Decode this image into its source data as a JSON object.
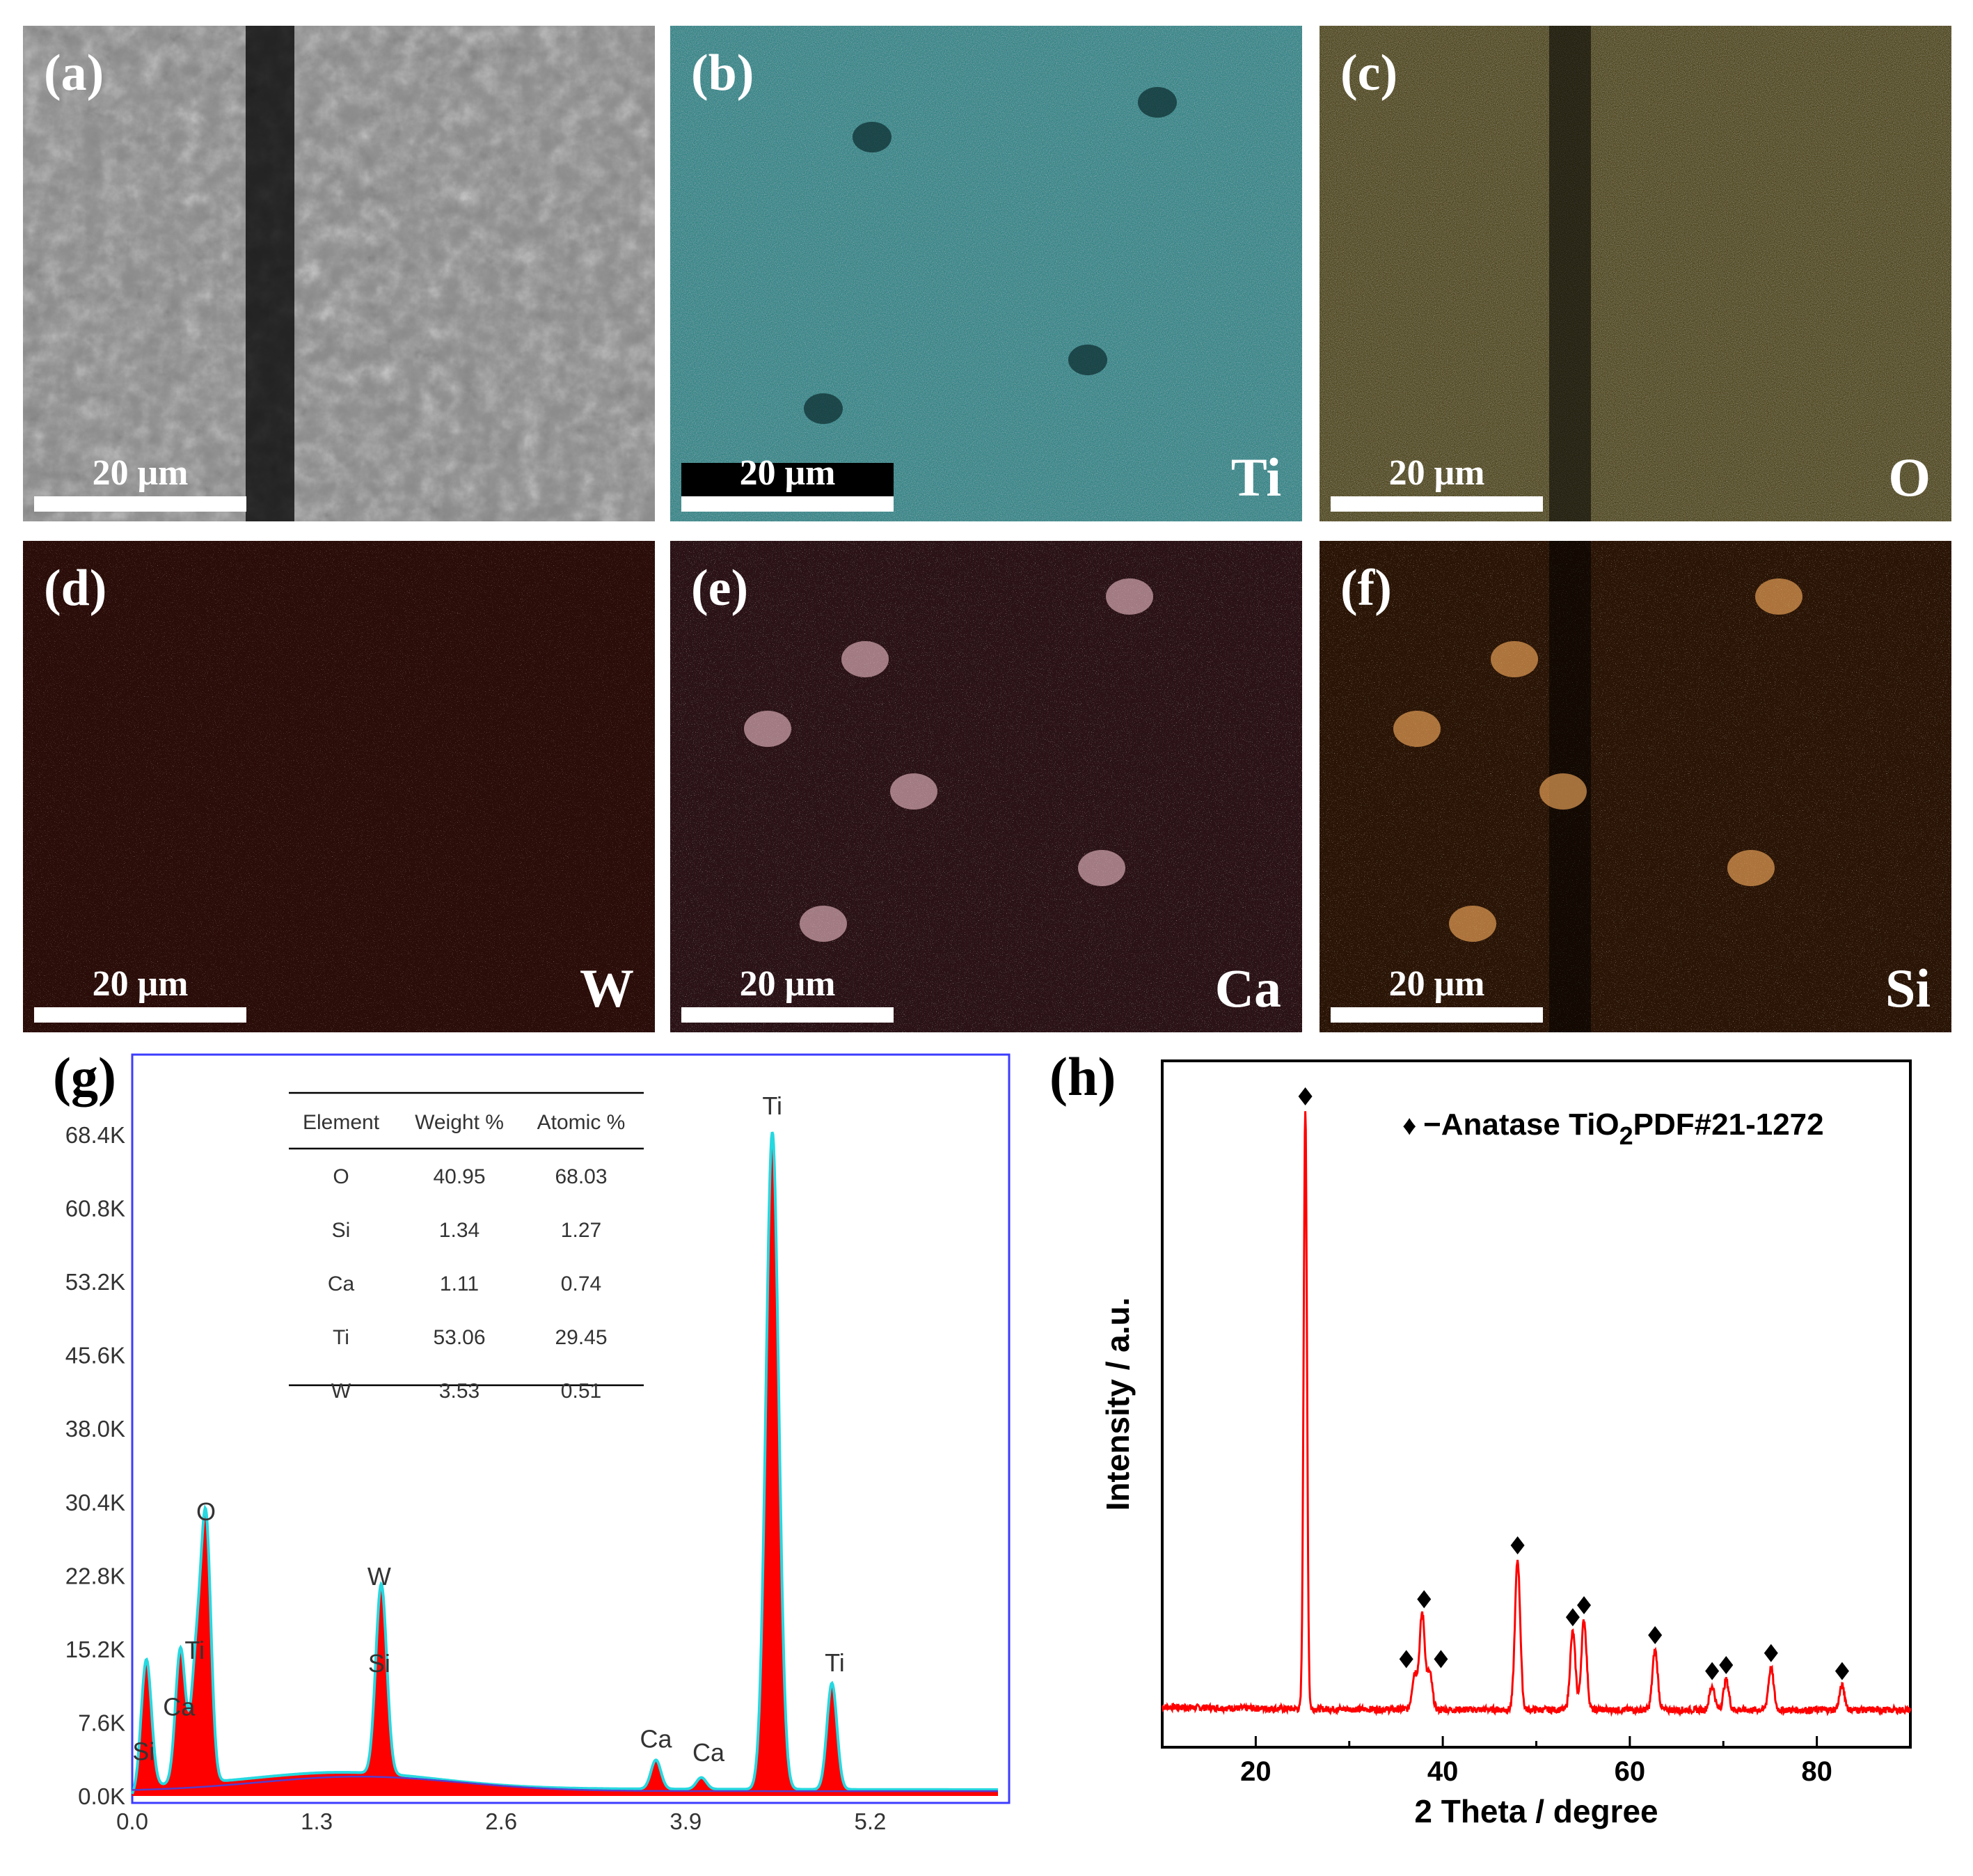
{
  "panels": [
    {
      "label": "(a)",
      "element": "",
      "scale": "20 μm",
      "base": "#8a8a8a",
      "fg": "#e8e8e8"
    },
    {
      "label": "(b)",
      "element": "Ti",
      "scale": "20 μm",
      "base": "#1a7a7e",
      "fg": "#4fd1d4"
    },
    {
      "label": "(c)",
      "element": "O",
      "scale": "20 μm",
      "base": "#3a3000",
      "fg": "#c9b21a"
    },
    {
      "label": "(d)",
      "element": "W",
      "scale": "20 μm",
      "base": "#2a0c08",
      "fg": "#c0311c"
    },
    {
      "label": "(e)",
      "element": "Ca",
      "scale": "20 μm",
      "base": "#2a1216",
      "fg": "#d89aa6"
    },
    {
      "label": "(f)",
      "element": "Si",
      "scale": "20 μm",
      "base": "#2a1405",
      "fg": "#e3963a"
    }
  ],
  "g": {
    "label": "(g)",
    "table": {
      "headers": [
        "Element",
        "Weight %",
        "Atomic %"
      ],
      "rows": [
        [
          "O",
          "40.95",
          "68.03"
        ],
        [
          "Si",
          "1.34",
          "1.27"
        ],
        [
          "Ca",
          "1.11",
          "0.74"
        ],
        [
          "Ti",
          "53.06",
          "29.45"
        ],
        [
          "W",
          "3.53",
          "0.51"
        ]
      ]
    }
  },
  "h": {
    "label": "(h)",
    "legend_marker": "♦",
    "legend_text": "−Anatase TiO",
    "legend_sub": "2",
    "legend_tail": "PDF#21-1272"
  },
  "chart_data": [
    {
      "type": "line",
      "title": "",
      "xlabel": "",
      "ylabel": "",
      "xlim": [
        0,
        6.1
      ],
      "ylim": [
        0,
        68400
      ],
      "x_ticks": [
        "0.0",
        "1.3",
        "2.6",
        "3.9",
        "5.2"
      ],
      "y_ticks": [
        "0.0K",
        "7.6K",
        "15.2K",
        "22.8K",
        "30.4K",
        "38.0K",
        "45.6K",
        "53.2K",
        "60.8K",
        "68.4K"
      ],
      "peaks": [
        {
          "name": "Si",
          "x": 0.1,
          "y": 13000
        },
        {
          "name": "Ca",
          "x": 0.34,
          "y": 14000
        },
        {
          "name": "Ti",
          "x": 0.45,
          "y": 12000
        },
        {
          "name": "O",
          "x": 0.52,
          "y": 26500
        },
        {
          "name": "W",
          "x": 1.77,
          "y": 10500
        },
        {
          "name": "Si",
          "x": 1.74,
          "y": 11000
        },
        {
          "name": "Ca",
          "x": 3.69,
          "y": 3000
        },
        {
          "name": "Ca",
          "x": 4.01,
          "y": 1200
        },
        {
          "name": "Ti",
          "x": 4.51,
          "y": 68000
        },
        {
          "name": "Ti",
          "x": 4.93,
          "y": 11000
        }
      ],
      "labels": [
        {
          "text": "Ti",
          "x": 4.51,
          "y": 70500
        },
        {
          "text": "O",
          "x": 0.52,
          "y": 28500
        },
        {
          "text": "W",
          "x": 1.74,
          "y": 21800
        },
        {
          "text": "Si",
          "x": 1.74,
          "y": 12800
        },
        {
          "text": "Ti",
          "x": 0.44,
          "y": 14200
        },
        {
          "text": "Ca",
          "x": 0.33,
          "y": 8300
        },
        {
          "text": "Si",
          "x": 0.08,
          "y": 3700
        },
        {
          "text": "Ca",
          "x": 3.69,
          "y": 5000
        },
        {
          "text": "Ca",
          "x": 4.06,
          "y": 3600
        },
        {
          "text": "Ti",
          "x": 4.95,
          "y": 12900
        }
      ]
    },
    {
      "type": "line",
      "title": "",
      "xlabel": "2 Theta / degree",
      "ylabel": "Intensity / a.u.",
      "xlim": [
        10,
        90
      ],
      "x_ticks": [
        "20",
        "40",
        "60",
        "80"
      ],
      "peaks": [
        {
          "x": 25.3,
          "y": 100
        },
        {
          "x": 37.0,
          "y": 6
        },
        {
          "x": 37.8,
          "y": 16
        },
        {
          "x": 38.6,
          "y": 6
        },
        {
          "x": 48.0,
          "y": 25
        },
        {
          "x": 53.9,
          "y": 13
        },
        {
          "x": 55.1,
          "y": 15
        },
        {
          "x": 62.7,
          "y": 10
        },
        {
          "x": 68.8,
          "y": 4
        },
        {
          "x": 70.3,
          "y": 5
        },
        {
          "x": 75.1,
          "y": 7
        },
        {
          "x": 82.7,
          "y": 4
        }
      ],
      "markers_x": [
        25.3,
        36.1,
        38.0,
        39.8,
        48.0,
        53.9,
        55.1,
        62.7,
        68.8,
        70.3,
        75.1,
        82.7
      ],
      "color": "#ff0000"
    }
  ]
}
